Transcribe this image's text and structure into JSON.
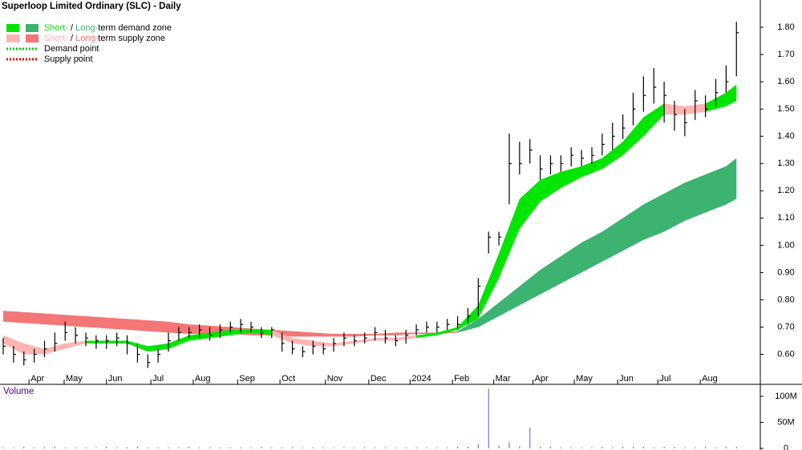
{
  "chart_data": {
    "type": "ohlc",
    "title": "Superloop Limited Ordinary (SLC) - Daily",
    "xlim": [
      0,
      73
    ],
    "xticks": [
      {
        "value": 2.5,
        "label": "Apr"
      },
      {
        "value": 5.9,
        "label": "May"
      },
      {
        "value": 10,
        "label": "Jun"
      },
      {
        "value": 14.3,
        "label": "Jul"
      },
      {
        "value": 18.4,
        "label": "Aug"
      },
      {
        "value": 22.7,
        "label": "Sep"
      },
      {
        "value": 26.8,
        "label": "Oct"
      },
      {
        "value": 31.2,
        "label": "Nov"
      },
      {
        "value": 35.4,
        "label": "Dec"
      },
      {
        "value": 39.4,
        "label": "2024"
      },
      {
        "value": 43.5,
        "label": "Feb"
      },
      {
        "value": 47.5,
        "label": "Mar"
      },
      {
        "value": 51.3,
        "label": "Apr"
      },
      {
        "value": 55.3,
        "label": "May"
      },
      {
        "value": 59.5,
        "label": "Jun"
      },
      {
        "value": 63.4,
        "label": "Jul"
      },
      {
        "value": 67.5,
        "label": "Aug"
      }
    ],
    "ylim": [
      0.49,
      1.9
    ],
    "yticks": [
      {
        "value": 0.6,
        "label": "0.60"
      },
      {
        "value": 0.7,
        "label": "0.70"
      },
      {
        "value": 0.8,
        "label": "0.80"
      },
      {
        "value": 0.9,
        "label": "0.90"
      },
      {
        "value": 1.0,
        "label": "1.00"
      },
      {
        "value": 1.1,
        "label": "1.10"
      },
      {
        "value": 1.2,
        "label": "1.20"
      },
      {
        "value": 1.3,
        "label": "1.30"
      },
      {
        "value": 1.4,
        "label": "1.40"
      },
      {
        "value": 1.5,
        "label": "1.50"
      },
      {
        "value": 1.6,
        "label": "1.60"
      },
      {
        "value": 1.7,
        "label": "1.70"
      },
      {
        "value": 1.8,
        "label": "1.80"
      }
    ],
    "x": [
      0,
      1,
      2,
      3,
      4,
      5,
      6,
      7,
      8,
      9,
      10,
      11,
      12,
      13,
      14,
      15,
      16,
      17,
      18,
      19,
      20,
      21,
      22,
      23,
      24,
      25,
      26,
      27,
      28,
      29,
      30,
      31,
      32,
      33,
      34,
      35,
      36,
      37,
      38,
      39,
      40,
      41,
      42,
      43,
      44,
      45,
      46,
      47,
      48,
      49,
      50,
      51,
      52,
      53,
      54,
      55,
      56,
      57,
      58,
      59,
      60,
      61,
      62,
      63,
      64,
      65,
      66,
      67,
      68,
      69,
      70,
      71
    ],
    "high": [
      0.66,
      0.63,
      0.61,
      0.62,
      0.65,
      0.68,
      0.72,
      0.7,
      0.68,
      0.67,
      0.67,
      0.68,
      0.67,
      0.64,
      0.6,
      0.62,
      0.68,
      0.7,
      0.7,
      0.71,
      0.7,
      0.71,
      0.72,
      0.73,
      0.72,
      0.7,
      0.7,
      0.68,
      0.65,
      0.63,
      0.65,
      0.64,
      0.66,
      0.68,
      0.67,
      0.68,
      0.7,
      0.69,
      0.67,
      0.69,
      0.71,
      0.72,
      0.72,
      0.73,
      0.74,
      0.77,
      0.88,
      1.05,
      1.05,
      1.41,
      1.38,
      1.39,
      1.33,
      1.33,
      1.33,
      1.36,
      1.35,
      1.36,
      1.41,
      1.45,
      1.48,
      1.56,
      1.62,
      1.65,
      1.6,
      1.53,
      1.5,
      1.57,
      1.55,
      1.61,
      1.66,
      1.82
    ],
    "low": [
      0.6,
      0.57,
      0.56,
      0.57,
      0.59,
      0.61,
      0.65,
      0.64,
      0.63,
      0.62,
      0.62,
      0.63,
      0.6,
      0.57,
      0.55,
      0.57,
      0.61,
      0.65,
      0.66,
      0.66,
      0.65,
      0.66,
      0.68,
      0.68,
      0.68,
      0.66,
      0.66,
      0.61,
      0.6,
      0.59,
      0.6,
      0.6,
      0.61,
      0.63,
      0.63,
      0.64,
      0.65,
      0.64,
      0.63,
      0.64,
      0.67,
      0.68,
      0.68,
      0.69,
      0.69,
      0.71,
      0.74,
      0.97,
      1.0,
      1.15,
      1.26,
      1.3,
      1.24,
      1.26,
      1.27,
      1.29,
      1.29,
      1.3,
      1.33,
      1.35,
      1.39,
      1.44,
      1.49,
      1.52,
      1.45,
      1.42,
      1.4,
      1.46,
      1.47,
      1.51,
      1.56,
      1.62
    ],
    "close": [
      0.63,
      0.6,
      0.58,
      0.6,
      0.62,
      0.64,
      0.68,
      0.67,
      0.66,
      0.65,
      0.65,
      0.66,
      0.64,
      0.6,
      0.57,
      0.6,
      0.65,
      0.68,
      0.68,
      0.69,
      0.67,
      0.69,
      0.7,
      0.71,
      0.7,
      0.68,
      0.69,
      0.64,
      0.62,
      0.61,
      0.63,
      0.62,
      0.64,
      0.66,
      0.65,
      0.66,
      0.68,
      0.66,
      0.65,
      0.67,
      0.69,
      0.7,
      0.7,
      0.71,
      0.71,
      0.74,
      0.85,
      1.03,
      1.03,
      1.3,
      1.3,
      1.35,
      1.28,
      1.3,
      1.3,
      1.33,
      1.32,
      1.33,
      1.37,
      1.4,
      1.43,
      1.5,
      1.55,
      1.58,
      1.55,
      1.48,
      1.45,
      1.53,
      1.5,
      1.56,
      1.6,
      1.78
    ],
    "zone_x": [
      0,
      2,
      4,
      6,
      8,
      10,
      12,
      14,
      16,
      18,
      20,
      22,
      24,
      26,
      28,
      30,
      32,
      34,
      36,
      38,
      40,
      42,
      44,
      46,
      48,
      50,
      52,
      54,
      56,
      58,
      60,
      62,
      64,
      66,
      68,
      70,
      71
    ],
    "zones": [
      {
        "color": "#f47676",
        "upper": [
          0.76,
          0.755,
          0.75,
          0.745,
          0.74,
          0.735,
          0.73,
          0.725,
          0.72,
          0.71,
          0.705,
          0.7,
          0.695,
          0.69,
          0.685,
          0.68,
          0.675,
          0.675,
          0.675,
          0.68,
          0.68,
          0.68,
          0.685,
          null,
          null,
          null,
          null,
          null,
          null,
          null,
          null,
          null,
          null,
          null,
          null,
          null,
          null
        ],
        "lower": [
          0.72,
          0.715,
          0.71,
          0.705,
          0.7,
          0.695,
          0.69,
          0.685,
          0.68,
          0.675,
          0.675,
          0.675,
          0.67,
          0.67,
          0.665,
          0.665,
          0.665,
          0.665,
          0.67,
          0.67,
          0.675,
          0.675,
          0.68,
          null,
          null,
          null,
          null,
          null,
          null,
          null,
          null,
          null,
          null,
          null,
          null,
          null,
          null
        ]
      },
      {
        "color": "#3cb371",
        "upper": [
          null,
          null,
          null,
          null,
          null,
          null,
          null,
          null,
          null,
          null,
          null,
          null,
          null,
          null,
          null,
          null,
          null,
          null,
          null,
          null,
          null,
          null,
          0.685,
          0.73,
          0.79,
          0.85,
          0.91,
          0.96,
          1.01,
          1.05,
          1.1,
          1.15,
          1.19,
          1.23,
          1.26,
          1.29,
          1.32
        ],
        "lower": [
          null,
          null,
          null,
          null,
          null,
          null,
          null,
          null,
          null,
          null,
          null,
          null,
          null,
          null,
          null,
          null,
          null,
          null,
          null,
          null,
          null,
          null,
          0.68,
          0.7,
          0.74,
          0.78,
          0.82,
          0.86,
          0.9,
          0.94,
          0.98,
          1.02,
          1.05,
          1.09,
          1.12,
          1.15,
          1.17
        ]
      },
      {
        "color": "#ffb4b4",
        "upper": [
          0.67,
          0.64,
          0.62,
          0.64,
          0.65,
          null,
          null,
          null,
          null,
          null,
          null,
          null,
          null,
          0.69,
          0.66,
          0.65,
          0.64,
          0.65,
          0.66,
          0.66,
          0.67,
          null,
          null,
          null,
          null,
          null,
          null,
          null,
          null,
          null,
          null,
          null,
          1.52,
          1.51,
          1.52,
          null,
          null
        ],
        "lower": [
          0.64,
          0.6,
          0.6,
          0.62,
          0.64,
          null,
          null,
          null,
          null,
          null,
          null,
          null,
          null,
          0.67,
          0.64,
          0.63,
          0.63,
          0.64,
          0.65,
          0.65,
          0.66,
          null,
          null,
          null,
          null,
          null,
          null,
          null,
          null,
          null,
          null,
          null,
          1.48,
          1.48,
          1.49,
          null,
          null
        ]
      },
      {
        "color": "#00e600",
        "upper": [
          null,
          null,
          null,
          null,
          0.65,
          0.65,
          0.65,
          0.63,
          0.64,
          0.67,
          0.68,
          0.69,
          0.69,
          0.69,
          null,
          null,
          null,
          null,
          null,
          null,
          0.67,
          0.68,
          0.7,
          0.78,
          0.97,
          1.17,
          1.24,
          1.27,
          1.29,
          1.32,
          1.38,
          1.47,
          1.52,
          null,
          1.52,
          1.56,
          1.59
        ],
        "lower": [
          null,
          null,
          null,
          null,
          0.64,
          0.64,
          0.64,
          0.61,
          0.62,
          0.65,
          0.66,
          0.67,
          0.68,
          0.67,
          null,
          null,
          null,
          null,
          null,
          null,
          0.66,
          0.67,
          0.69,
          0.73,
          0.88,
          1.06,
          1.16,
          1.21,
          1.25,
          1.28,
          1.33,
          1.4,
          1.48,
          null,
          1.49,
          1.51,
          1.53
        ]
      }
    ],
    "volume_title": "Volume",
    "volume": [
      2000000,
      2000000,
      3000000,
      2000000,
      2000000,
      3000000,
      2000000,
      2000000,
      2000000,
      2000000,
      3000000,
      2000000,
      2000000,
      3000000,
      2000000,
      2000000,
      2000000,
      2000000,
      3000000,
      2000000,
      2000000,
      2000000,
      2000000,
      2000000,
      2000000,
      3000000,
      2000000,
      2000000,
      2000000,
      2000000,
      2000000,
      2000000,
      2000000,
      2000000,
      2000000,
      2000000,
      2000000,
      2000000,
      2000000,
      2000000,
      2000000,
      2000000,
      2000000,
      2000000,
      3000000,
      3000000,
      8000000,
      115000000,
      5000000,
      12000000,
      4000000,
      40000000,
      3000000,
      3000000,
      2000000,
      2000000,
      2000000,
      2000000,
      3000000,
      2000000,
      3000000,
      3000000,
      3000000,
      2000000,
      3000000,
      3000000,
      2000000,
      2000000,
      3000000,
      2000000,
      3000000,
      3000000
    ],
    "vlim": [
      0,
      123000000
    ],
    "vticks": [
      0,
      {
        "value": 50000000,
        "label": "50M"
      },
      {
        "value": 100000000,
        "label": "100M"
      }
    ],
    "volume_color": "#6a5acd",
    "bar_color": "#000000",
    "legend": [
      {
        "parts": [
          "Short-",
          " / ",
          "Long-",
          "term demand zone"
        ],
        "colors": [
          "#00e600",
          "#3cb371"
        ]
      },
      {
        "parts": [
          "Short-",
          " / ",
          "Long-",
          "term supply zone"
        ],
        "colors": [
          "#ffb4b4",
          "#f47676"
        ]
      },
      {
        "label": "Demand point",
        "color": "#00cc00"
      },
      {
        "label": "Supply point",
        "color": "#e00000"
      }
    ]
  }
}
